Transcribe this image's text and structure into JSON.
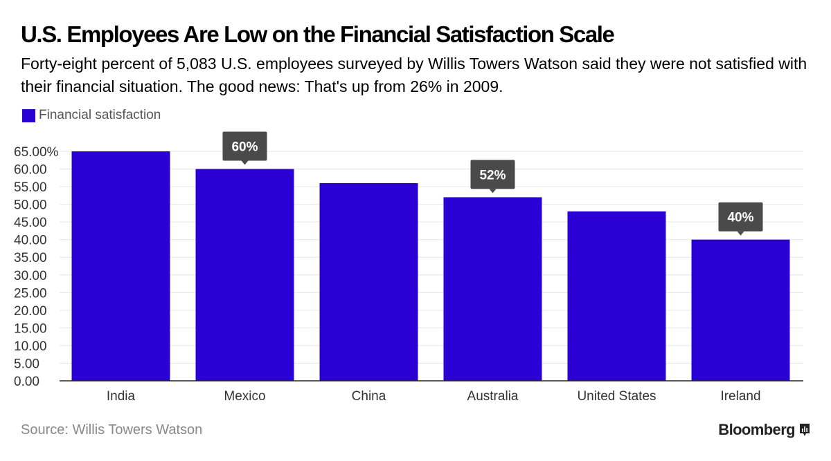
{
  "header": {
    "title": "U.S. Employees Are Low on the Financial Satisfaction Scale",
    "subtitle": "Forty-eight percent of 5,083 U.S. employees surveyed by Willis Towers Watson said they were not satisfied with their financial situation. The good news: That's up from 26% in 2009."
  },
  "footer": {
    "source": "Source: Willis Towers Watson",
    "brand": "Bloomberg"
  },
  "colors": {
    "bar": "#2a00d5",
    "callout": "#4a4a4a",
    "grid": "#e6e6e6",
    "axis_text": "#333333"
  },
  "chart_data": {
    "type": "bar",
    "categories": [
      "India",
      "Mexico",
      "China",
      "Australia",
      "United States",
      "Ireland"
    ],
    "series": [
      {
        "name": "Financial satisfaction",
        "values": [
          65,
          60,
          56,
          52,
          48,
          40
        ]
      }
    ],
    "ylim": [
      0,
      65
    ],
    "yticks": [
      "0.00",
      "5.00",
      "10.00",
      "15.00",
      "20.00",
      "25.00",
      "30.00",
      "35.00",
      "40.00",
      "45.00",
      "50.00",
      "55.00",
      "60.00",
      "65.00%"
    ],
    "annotations": [
      {
        "category": "Mexico",
        "text": "60%"
      },
      {
        "category": "Australia",
        "text": "52%"
      },
      {
        "category": "Ireland",
        "text": "40%"
      }
    ],
    "grid": true,
    "legend": "top-left",
    "xlabel": "",
    "ylabel": ""
  }
}
